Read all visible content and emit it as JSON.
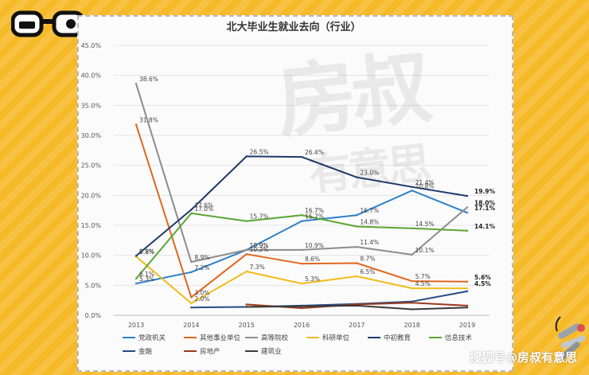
{
  "watermark": {
    "line1": "房叔",
    "line2": "有意思"
  },
  "credit": "搜狐号@房叔有意思",
  "colors": {
    "background": "#f6b928",
    "card": "#fbfbfb"
  },
  "icons": {
    "logo": "glasses-logo-icon",
    "keys": "keys-icon"
  },
  "chart_data": {
    "type": "line",
    "title": "北大毕业生就业去向（行业）",
    "x": [
      "2013",
      "2014",
      "2015",
      "2016",
      "2017",
      "2018",
      "2019"
    ],
    "ylim": [
      0,
      45
    ],
    "yticks": [
      "0.0%",
      "5.0%",
      "10.0%",
      "15.0%",
      "20.0%",
      "25.0%",
      "30.0%",
      "35.0%",
      "40.0%",
      "45.0%"
    ],
    "grid": true,
    "legend": "bottom",
    "series": [
      {
        "name": "党政机关",
        "color": "#2f80c8",
        "values": [
          5.3,
          7.2,
          10.9,
          15.7,
          16.7,
          20.8,
          17.1
        ],
        "labels": [
          "5.3%",
          "7.2%",
          "10.9%",
          "15.7%",
          "16.7%",
          "20.8%",
          "17.1%"
        ]
      },
      {
        "name": "其他事业单位",
        "color": "#e2661f",
        "values": [
          31.8,
          3.0,
          10.2,
          8.6,
          8.7,
          5.7,
          5.6
        ],
        "labels": [
          "31.8%",
          "3.0%",
          "10.2%",
          "8.6%",
          "8.7%",
          "5.7%",
          "5.6%"
        ]
      },
      {
        "name": "高等院校",
        "color": "#8c8c8c",
        "values": [
          38.6,
          8.9,
          10.9,
          10.9,
          11.4,
          10.1,
          18.0
        ],
        "labels": [
          "38.6%",
          "8.9%",
          "10.9%",
          "10.9%",
          "11.4%",
          "10.1%",
          "18.0%"
        ]
      },
      {
        "name": "科研单位",
        "color": "#f0bc1c",
        "values": [
          9.8,
          2.0,
          7.3,
          5.3,
          6.5,
          4.5,
          4.5
        ],
        "labels": [
          "9.8%",
          "2.0%",
          "7.3%",
          "5.3%",
          "6.5%",
          "4.5%",
          "4.5%"
        ]
      },
      {
        "name": "中初教育",
        "color": "#1f3a6b",
        "values": [
          9.9,
          17.6,
          26.5,
          26.4,
          23.0,
          21.4,
          19.9
        ],
        "labels": [
          "9.9%",
          "17.6%",
          "26.5%",
          "26.4%",
          "23.0%",
          "21.4%",
          "19.9%"
        ]
      },
      {
        "name": "信息技术",
        "color": "#5aa632",
        "values": [
          6.1,
          17.0,
          15.7,
          16.7,
          14.8,
          14.5,
          14.1
        ],
        "labels": [
          "6.1%",
          "17.0%",
          "15.7%",
          "16.7%",
          "14.8%",
          "14.5%",
          "14.1%"
        ]
      },
      {
        "name": "金融",
        "color": "#264b86",
        "values": [
          null,
          1.3,
          1.4,
          1.6,
          1.9,
          2.3,
          4.0
        ],
        "labels": []
      },
      {
        "name": "房地产",
        "color": "#9a3a1e",
        "values": [
          null,
          null,
          1.8,
          1.2,
          1.8,
          2.1,
          1.6
        ],
        "labels": []
      },
      {
        "name": "建筑业",
        "color": "#3a3a3a",
        "values": [
          null,
          null,
          1.4,
          1.5,
          1.6,
          1.0,
          1.3
        ],
        "labels": []
      }
    ]
  }
}
